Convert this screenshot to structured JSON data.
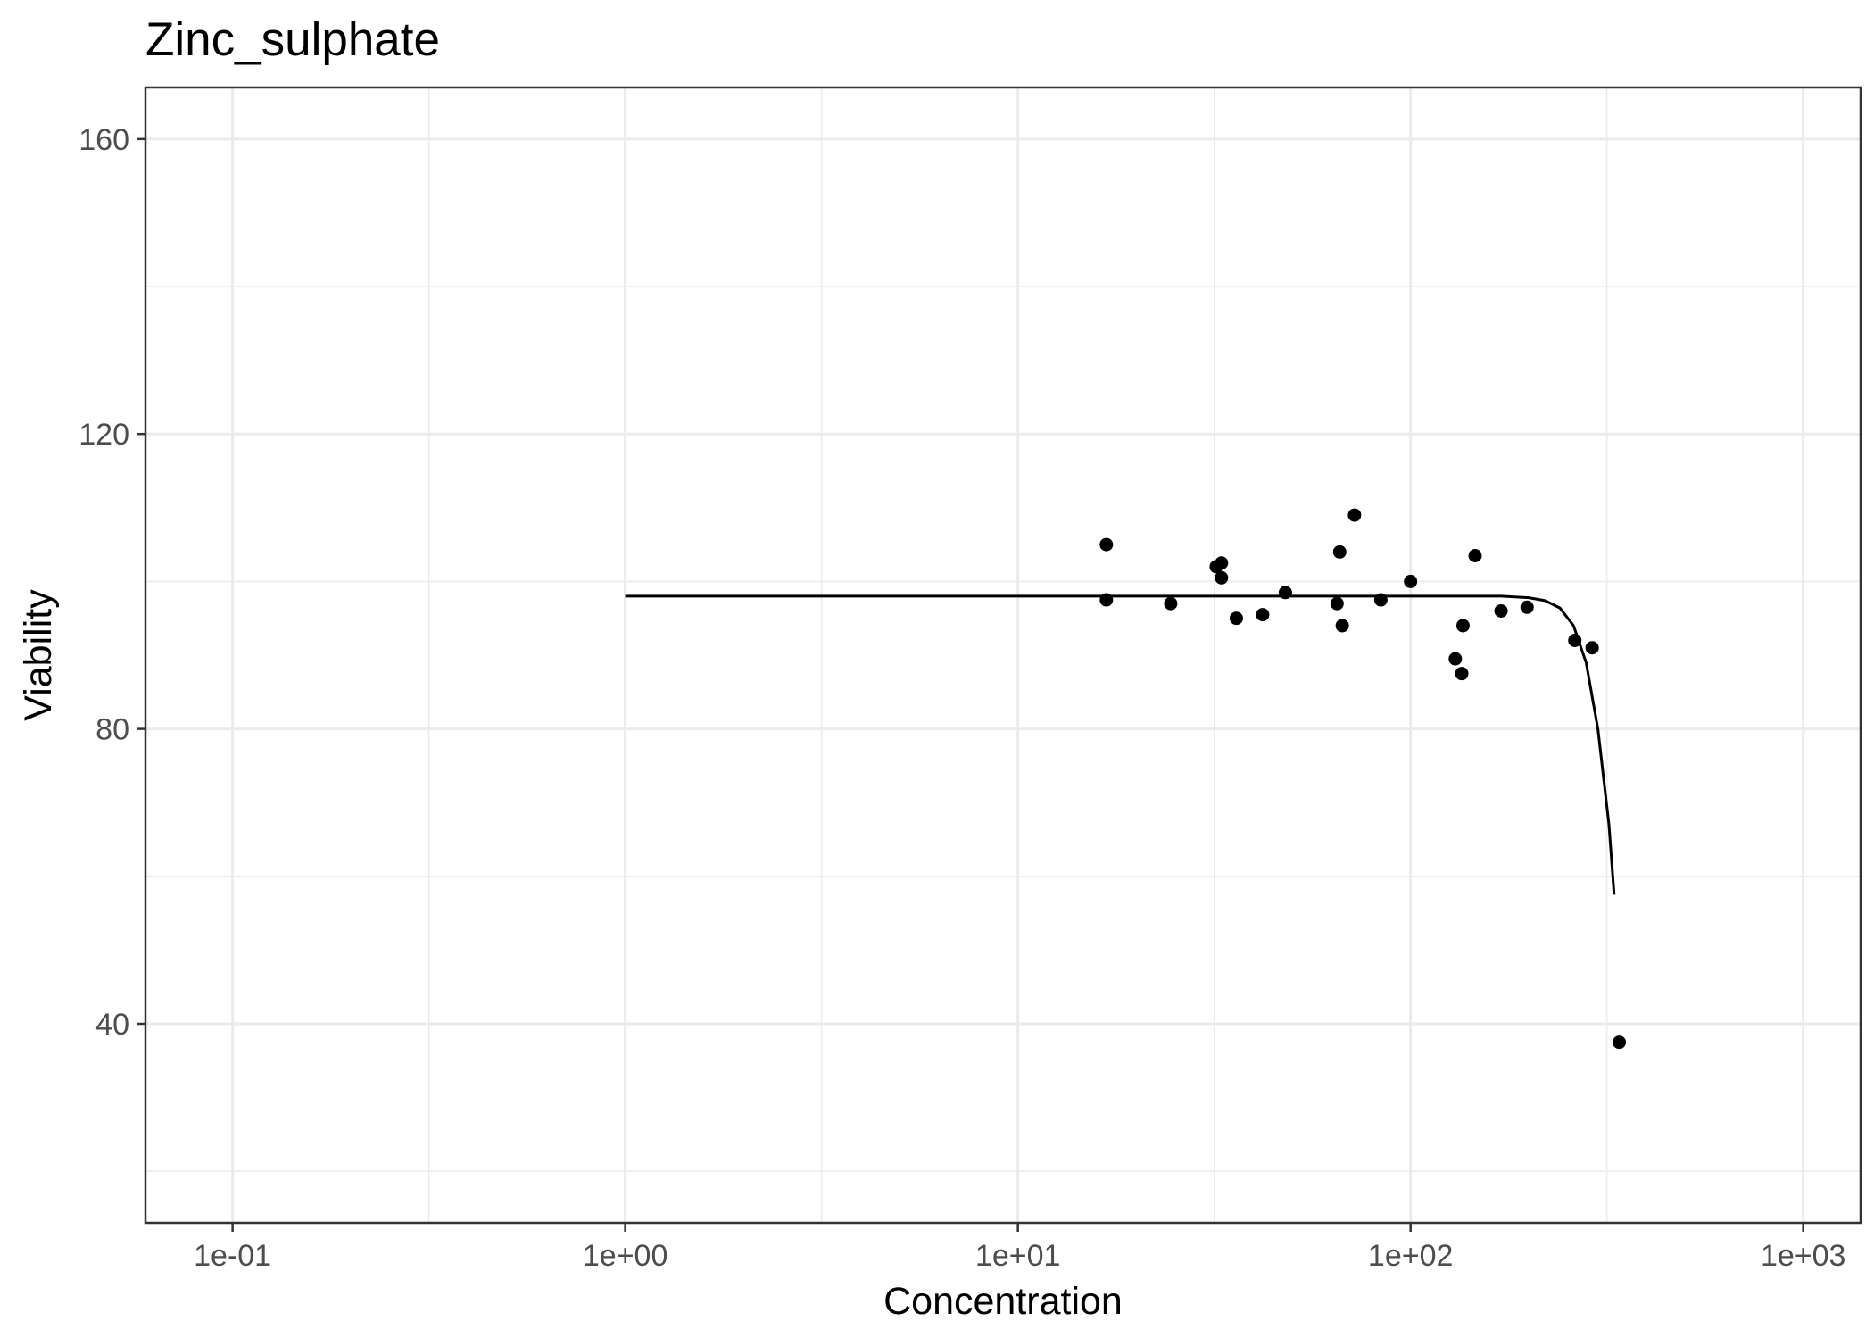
{
  "chart_data": {
    "type": "scatter",
    "title": "Zinc_sulphate",
    "xlabel": "Concentration",
    "ylabel": "Viability",
    "x_scale": "log10",
    "xlim": [
      0.06,
      1400
    ],
    "ylim": [
      13,
      167
    ],
    "x_ticks": [
      {
        "value": 0.1,
        "label": "1e-01"
      },
      {
        "value": 1,
        "label": "1e+00"
      },
      {
        "value": 10,
        "label": "1e+01"
      },
      {
        "value": 100,
        "label": "1e+02"
      },
      {
        "value": 1000,
        "label": "1e+03"
      }
    ],
    "y_ticks": [
      {
        "value": 40,
        "label": "40"
      },
      {
        "value": 80,
        "label": "80"
      },
      {
        "value": 120,
        "label": "120"
      },
      {
        "value": 160,
        "label": "160"
      }
    ],
    "grid": true,
    "legend": "none",
    "colors": {
      "points": "#000000",
      "curve": "#000000",
      "grid": "#ebebeb",
      "panel_border": "#333333"
    },
    "series": [
      {
        "kind": "points",
        "x": [
          16.8,
          16.8,
          24.5,
          32,
          33,
          33,
          36,
          42,
          48,
          65,
          66,
          67,
          72,
          84,
          100,
          130,
          135,
          136,
          146,
          170,
          198,
          262,
          290,
          340
        ],
        "y": [
          105,
          97.5,
          97,
          102,
          102.5,
          100.5,
          95,
          95.5,
          98.5,
          97,
          104,
          94,
          109,
          97.5,
          100,
          89.5,
          87.5,
          94,
          103.5,
          96,
          96.5,
          92,
          91,
          37.5
        ]
      },
      {
        "kind": "fitted-curve",
        "x": [
          1,
          10,
          100,
          170,
          200,
          220,
          240,
          260,
          280,
          300,
          320,
          330
        ],
        "y": [
          98,
          98,
          98,
          98,
          97.8,
          97.4,
          96.4,
          94,
          89,
          80,
          67,
          57.5
        ]
      }
    ]
  }
}
